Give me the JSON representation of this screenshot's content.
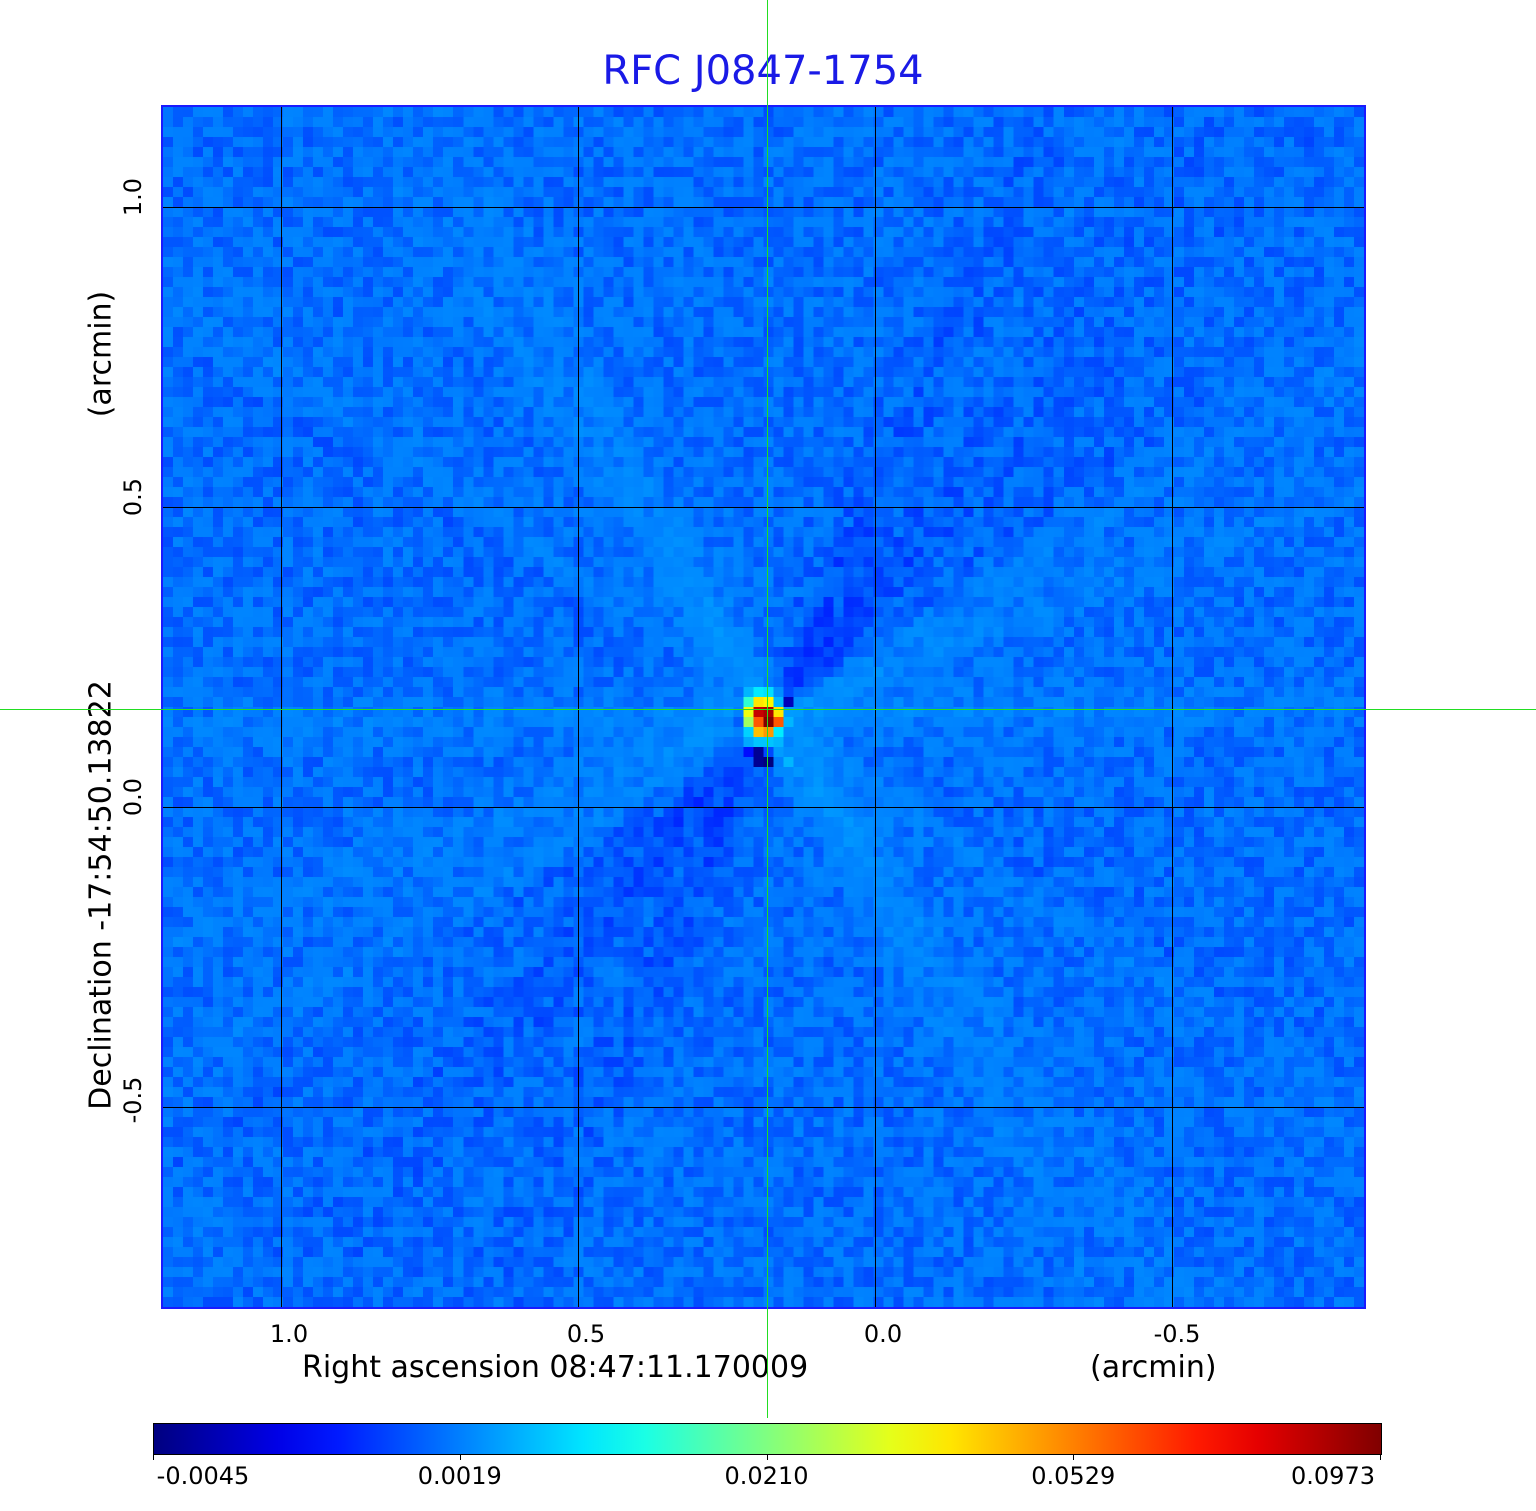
{
  "chart_data": {
    "type": "heatmap",
    "title": "RFC J0847-1754",
    "xlabel": "Right ascension  08:47:11.170009",
    "xunit": "(arcmin)",
    "ylabel": "Declination  -17:54:50.13822",
    "yunit": "(arcmin)",
    "xlim": [
      1.2,
      -0.82
    ],
    "ylim": [
      -0.83,
      1.17
    ],
    "x_ticks": [
      "1.0",
      "0.5",
      "0.0",
      "-0.5"
    ],
    "x_tick_values": [
      1.0,
      0.5,
      0.0,
      -0.5
    ],
    "y_ticks": [
      "1.0",
      "0.5",
      "0.0",
      "-0.5"
    ],
    "y_tick_values": [
      1.0,
      0.5,
      0.0,
      -0.5
    ],
    "grid": true,
    "crosshair": {
      "x": 0.18,
      "y": 0.163
    },
    "colormap": "jet",
    "colorbar": {
      "position": "bottom",
      "ticks": [
        "-0.0045",
        "0.0019",
        "0.0210",
        "0.0529",
        "0.0973"
      ],
      "tick_values": [
        -0.0045,
        0.0019,
        0.021,
        0.0529,
        0.0973
      ]
    },
    "background_level": 0.0015,
    "peak_value": 0.0973,
    "peak_patch": {
      "x_center_arcmin": 0.18,
      "y_center_arcmin": 0.163,
      "values": [
        [
          0.0015,
          0.006,
          0.01,
          0.009,
          0.003,
          0.0005
        ],
        [
          0.0025,
          0.015,
          0.04,
          0.038,
          0.006,
          -0.003
        ],
        [
          0.002,
          0.035,
          0.085,
          0.09,
          0.04,
          0.004
        ],
        [
          0.001,
          0.025,
          0.06,
          0.097,
          0.06,
          0.006
        ],
        [
          0.002,
          0.008,
          0.045,
          0.05,
          0.01,
          0.003
        ],
        [
          0.0015,
          0.005,
          0.007,
          0.007,
          0.006,
          0.002
        ],
        [
          0.001,
          -0.001,
          -0.004,
          0.0005,
          0.004,
          0.003
        ],
        [
          0.001,
          0.001,
          -0.004,
          -0.0045,
          0.002,
          0.006
        ]
      ]
    }
  },
  "colors": {
    "title": "#1a1ae6",
    "frame": "#1a1aff",
    "crosshair": "#22dd22"
  }
}
